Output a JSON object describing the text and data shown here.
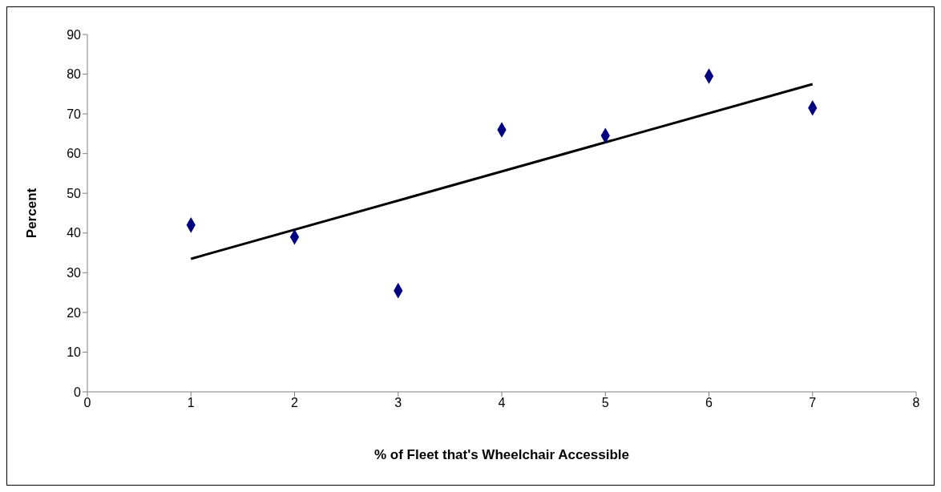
{
  "chart_data": {
    "type": "scatter",
    "xlabel": "% of Fleet that's Wheelchair Accessible",
    "ylabel": "Percent",
    "x": [
      1,
      2,
      3,
      4,
      5,
      6,
      7
    ],
    "series": [
      {
        "color": "#000080",
        "marker": "diamond",
        "values": [
          42,
          39,
          25.5,
          66,
          64.5,
          79.5,
          71.5
        ]
      },
      {
        "type": "line",
        "color": "#000000",
        "marker": "none",
        "x": [
          1,
          7
        ],
        "values": [
          33.5,
          77.5
        ]
      }
    ],
    "xlim": [
      0,
      8
    ],
    "xticks": [
      0,
      1,
      2,
      3,
      4,
      5,
      6,
      7,
      8
    ],
    "ylim": [
      0,
      90
    ],
    "yticks": [
      0,
      10,
      20,
      30,
      40,
      50,
      60,
      70,
      80,
      90
    ]
  }
}
